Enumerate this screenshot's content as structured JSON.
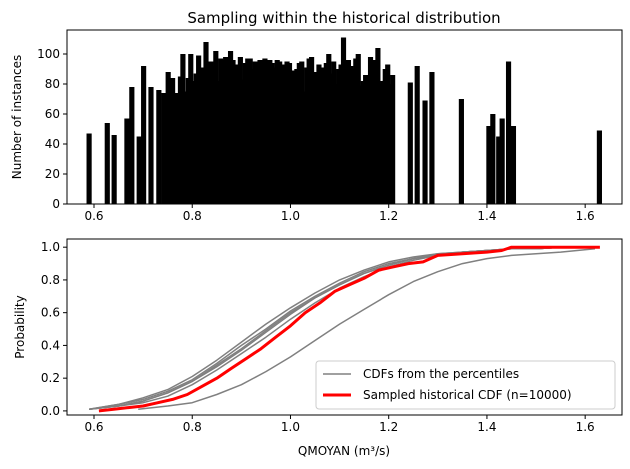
{
  "chart_data": [
    {
      "type": "bar",
      "title": "Sampling within the historical distribution",
      "xlabel": "",
      "ylabel": "Number of instances",
      "xlim": [
        0.545,
        1.675
      ],
      "ylim": [
        0,
        116
      ],
      "xticks": [
        0.6,
        0.8,
        1.0,
        1.2,
        1.4,
        1.6
      ],
      "xtick_labels": [
        "0.6",
        "0.8",
        "1.0",
        "1.2",
        "1.4",
        "1.6"
      ],
      "yticks": [
        0,
        20,
        40,
        60,
        80,
        100
      ],
      "ytick_labels": [
        "0",
        "20",
        "40",
        "60",
        "80",
        "100"
      ],
      "bar_width": 0.0105,
      "bar_color": "#000000",
      "x": [
        0.59,
        0.627,
        0.641,
        0.667,
        0.677,
        0.692,
        0.701,
        0.716,
        0.732,
        0.742,
        0.751,
        0.76,
        0.77,
        0.776,
        0.781,
        0.787,
        0.792,
        0.797,
        0.803,
        0.808,
        0.813,
        0.818,
        0.823,
        0.828,
        0.833,
        0.838,
        0.843,
        0.848,
        0.853,
        0.858,
        0.863,
        0.868,
        0.873,
        0.878,
        0.883,
        0.888,
        0.893,
        0.898,
        0.903,
        0.908,
        0.913,
        0.918,
        0.923,
        0.928,
        0.933,
        0.938,
        0.943,
        0.948,
        0.953,
        0.958,
        0.963,
        0.968,
        0.973,
        0.978,
        0.983,
        0.988,
        0.993,
        0.998,
        1.003,
        1.008,
        1.013,
        1.018,
        1.023,
        1.028,
        1.033,
        1.038,
        1.043,
        1.048,
        1.053,
        1.058,
        1.063,
        1.068,
        1.073,
        1.078,
        1.083,
        1.088,
        1.093,
        1.098,
        1.103,
        1.108,
        1.113,
        1.118,
        1.123,
        1.128,
        1.133,
        1.138,
        1.143,
        1.148,
        1.153,
        1.158,
        1.163,
        1.168,
        1.173,
        1.178,
        1.183,
        1.188,
        1.193,
        1.198,
        1.203,
        1.208,
        1.244,
        1.258,
        1.274,
        1.288,
        1.348,
        1.404,
        1.412,
        1.424,
        1.431,
        1.444,
        1.454,
        1.629
      ],
      "values": [
        47,
        54,
        46,
        57,
        78,
        45,
        92,
        78,
        76,
        74,
        88,
        84,
        74,
        85,
        100,
        75,
        84,
        100,
        82,
        87,
        99,
        79,
        91,
        108,
        82,
        95,
        92,
        102,
        82,
        97,
        96,
        98,
        83,
        102,
        96,
        86,
        93,
        98,
        83,
        94,
        97,
        97,
        90,
        95,
        85,
        96,
        95,
        97,
        80,
        96,
        94,
        91,
        96,
        95,
        93,
        80,
        95,
        94,
        88,
        89,
        90,
        94,
        95,
        75,
        91,
        97,
        98,
        88,
        84,
        93,
        83,
        91,
        94,
        100,
        87,
        95,
        80,
        90,
        93,
        111,
        80,
        96,
        92,
        90,
        97,
        100,
        79,
        82,
        86,
        85,
        98,
        96,
        87,
        104,
        80,
        82,
        90,
        93,
        80,
        86,
        81,
        92,
        69,
        88,
        70,
        52,
        60,
        45,
        57,
        95,
        52,
        49
      ]
    },
    {
      "type": "line",
      "title": "",
      "xlabel": "QMOYAN (m³/s)",
      "ylabel": "Probability",
      "xlim": [
        0.545,
        1.675
      ],
      "ylim": [
        -0.025,
        1.05
      ],
      "xticks": [
        0.6,
        0.8,
        1.0,
        1.2,
        1.4,
        1.6
      ],
      "xtick_labels": [
        "0.6",
        "0.8",
        "1.0",
        "1.2",
        "1.4",
        "1.6"
      ],
      "yticks": [
        0.0,
        0.2,
        0.4,
        0.6,
        0.8,
        1.0
      ],
      "ytick_labels": [
        "0.0",
        "0.2",
        "0.4",
        "0.6",
        "0.8",
        "1.0"
      ],
      "legend": {
        "position": "lower-right",
        "entries": [
          {
            "label": "CDFs from the percentiles",
            "color": "#808080"
          },
          {
            "label": "Sampled historical CDF (n=10000)",
            "color": "#ff0000"
          }
        ]
      },
      "series": [
        {
          "color": "#808080",
          "width": 1.5,
          "x": [
            0.59,
            0.65,
            0.7,
            0.75,
            0.8,
            0.85,
            0.9,
            0.95,
            1.0,
            1.05,
            1.1,
            1.15,
            1.2,
            1.25,
            1.3,
            1.35,
            1.4,
            1.45,
            1.5,
            1.55,
            1.6
          ],
          "y": [
            0.01,
            0.03,
            0.06,
            0.11,
            0.18,
            0.27,
            0.37,
            0.48,
            0.59,
            0.69,
            0.77,
            0.84,
            0.89,
            0.93,
            0.95,
            0.97,
            0.98,
            0.99,
            0.99,
            1.0,
            1.0
          ]
        },
        {
          "color": "#808080",
          "width": 1.5,
          "x": [
            0.59,
            0.65,
            0.7,
            0.75,
            0.8,
            0.85,
            0.9,
            0.95,
            1.0,
            1.05,
            1.1,
            1.15,
            1.2,
            1.25,
            1.3,
            1.35,
            1.4,
            1.45,
            1.5,
            1.55,
            1.6
          ],
          "y": [
            0.01,
            0.04,
            0.08,
            0.13,
            0.21,
            0.31,
            0.42,
            0.53,
            0.63,
            0.72,
            0.8,
            0.86,
            0.91,
            0.94,
            0.96,
            0.97,
            0.98,
            0.99,
            0.99,
            1.0,
            1.0
          ]
        },
        {
          "color": "#808080",
          "width": 1.5,
          "x": [
            0.59,
            0.65,
            0.7,
            0.75,
            0.8,
            0.85,
            0.9,
            0.95,
            1.0,
            1.05,
            1.1,
            1.15,
            1.2,
            1.25,
            1.3,
            1.35,
            1.4,
            1.45,
            1.5,
            1.55,
            1.6
          ],
          "y": [
            0.01,
            0.03,
            0.05,
            0.09,
            0.16,
            0.25,
            0.35,
            0.45,
            0.56,
            0.66,
            0.75,
            0.82,
            0.88,
            0.92,
            0.95,
            0.97,
            0.98,
            0.99,
            0.99,
            1.0,
            1.0
          ]
        },
        {
          "color": "#808080",
          "width": 1.5,
          "x": [
            0.59,
            0.65,
            0.7,
            0.75,
            0.8,
            0.85,
            0.9,
            0.95,
            1.0,
            1.05,
            1.1,
            1.15,
            1.2,
            1.25,
            1.3,
            1.35,
            1.4,
            1.45,
            1.5,
            1.55,
            1.6
          ],
          "y": [
            0.01,
            0.04,
            0.07,
            0.12,
            0.19,
            0.29,
            0.4,
            0.5,
            0.61,
            0.7,
            0.78,
            0.85,
            0.9,
            0.93,
            0.96,
            0.97,
            0.98,
            0.99,
            0.99,
            1.0,
            1.0
          ]
        },
        {
          "color": "#808080",
          "width": 1.5,
          "x": [
            0.59,
            0.65,
            0.7,
            0.75,
            0.8,
            0.85,
            0.9,
            0.95,
            1.0,
            1.05,
            1.1,
            1.15,
            1.2,
            1.25,
            1.3,
            1.35,
            1.4,
            1.45,
            1.5,
            1.55,
            1.6
          ],
          "y": [
            0.01,
            0.03,
            0.06,
            0.11,
            0.18,
            0.28,
            0.38,
            0.49,
            0.6,
            0.69,
            0.77,
            0.84,
            0.89,
            0.93,
            0.95,
            0.97,
            0.98,
            0.99,
            0.99,
            1.0,
            1.0
          ]
        },
        {
          "color": "#808080",
          "width": 1.5,
          "x": [
            0.69,
            0.75,
            0.8,
            0.85,
            0.9,
            0.95,
            1.0,
            1.05,
            1.1,
            1.15,
            1.2,
            1.25,
            1.3,
            1.35,
            1.4,
            1.45,
            1.5,
            1.55,
            1.62
          ],
          "y": [
            0.01,
            0.03,
            0.05,
            0.1,
            0.16,
            0.24,
            0.33,
            0.43,
            0.53,
            0.62,
            0.71,
            0.79,
            0.85,
            0.9,
            0.93,
            0.95,
            0.96,
            0.97,
            0.99
          ]
        },
        {
          "name": "Sampled historical CDF (n=10000)",
          "color": "#ff0000",
          "width": 3,
          "x": [
            0.61,
            0.64,
            0.67,
            0.7,
            0.73,
            0.76,
            0.79,
            0.82,
            0.85,
            0.88,
            0.91,
            0.94,
            0.97,
            1.0,
            1.03,
            1.06,
            1.09,
            1.12,
            1.15,
            1.18,
            1.21,
            1.24,
            1.27,
            1.3,
            1.35,
            1.4,
            1.43,
            1.45,
            1.5,
            1.55,
            1.6,
            1.63
          ],
          "y": [
            0.0,
            0.01,
            0.02,
            0.03,
            0.05,
            0.07,
            0.1,
            0.15,
            0.2,
            0.26,
            0.32,
            0.38,
            0.45,
            0.52,
            0.6,
            0.66,
            0.73,
            0.77,
            0.81,
            0.86,
            0.88,
            0.9,
            0.91,
            0.95,
            0.96,
            0.97,
            0.98,
            1.0,
            1.0,
            1.0,
            1.0,
            1.0
          ]
        }
      ]
    }
  ]
}
